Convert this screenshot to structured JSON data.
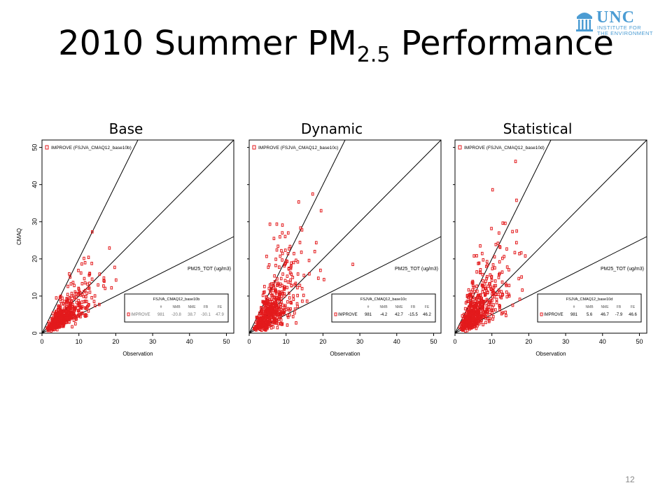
{
  "slide": {
    "title_main": "2010 Summer PM",
    "title_sub": "2.5",
    "title_end": " Performance",
    "page_number": "12"
  },
  "logo": {
    "name": "UNC",
    "subtitle_line1": "INSTITUTE FOR",
    "subtitle_line2": "THE ENVIRONMENT",
    "color": "#4b9cd3"
  },
  "chart_data": [
    {
      "type": "scatter",
      "panel_label": "Base",
      "legend": "IMPROVE (FSJVA_CMAQ12_base10b)",
      "species_label": "PM25_TOT   (ug/m3)",
      "xlabel": "Observation",
      "ylabel": "CMAQ",
      "xlim": [
        0,
        52
      ],
      "ylim": [
        0,
        52
      ],
      "xticks": [
        "0",
        "10",
        "20",
        "30",
        "40",
        "50"
      ],
      "yticks": [
        "0",
        "10",
        "20",
        "30",
        "40",
        "50"
      ],
      "reference_lines": [
        "2:1",
        "1:1",
        "1:2"
      ],
      "marker_color": "#e31a1c",
      "stats": {
        "run": "FSJVA_CMAQ12_base10b",
        "headers": [
          "",
          "#",
          "NMB",
          "NME",
          "FB",
          "FE"
        ],
        "row": [
          "IMPROVE",
          "981",
          "-20.8",
          "38.7",
          "-30.1",
          "47.9"
        ]
      },
      "points_summary": {
        "seed": 11,
        "max_obs": 22,
        "max_mod": 29,
        "count": 981
      }
    },
    {
      "type": "scatter",
      "panel_label": "Dynamic",
      "legend": "IMPROVE (FSJVA_CMAQ12_base10c)",
      "species_label": "PM25_TOT   (ug/m3)",
      "xlabel": "Observation",
      "ylabel": "",
      "xlim": [
        0,
        52
      ],
      "ylim": [
        0,
        52
      ],
      "xticks": [
        "0",
        "10",
        "20",
        "30",
        "40",
        "50"
      ],
      "yticks": [],
      "reference_lines": [
        "2:1",
        "1:1",
        "1:2"
      ],
      "marker_color": "#e31a1c",
      "stats": {
        "run": "FSJVA_CMAQ12_base10c",
        "headers": [
          "",
          "#",
          "NMB",
          "NME",
          "FB",
          "FE"
        ],
        "row": [
          "IMPROVE",
          "981",
          "-4.2",
          "42.7",
          "-15.5",
          "46.2"
        ]
      },
      "points_summary": {
        "seed": 23,
        "max_obs": 30,
        "max_mod": 43,
        "count": 981
      }
    },
    {
      "type": "scatter",
      "panel_label": "Statistical",
      "legend": "IMPROVE (FSJVA_CMAQ12_base10d)",
      "species_label": "PM25_TOT   (ug/m3)",
      "xlabel": "Observation",
      "ylabel": "",
      "xlim": [
        0,
        52
      ],
      "ylim": [
        0,
        52
      ],
      "xticks": [
        "0",
        "10",
        "20",
        "30",
        "40",
        "50"
      ],
      "yticks": [],
      "reference_lines": [
        "2:1",
        "1:1",
        "1:2"
      ],
      "marker_color": "#e31a1c",
      "stats": {
        "run": "FSJVA_CMAQ12_base10d",
        "headers": [
          "",
          "#",
          "NMB",
          "NME",
          "FB",
          "FE"
        ],
        "row": [
          "IMPROVE",
          "981",
          "5.6",
          "46.7",
          "-7.9",
          "46.6"
        ]
      },
      "points_summary": {
        "seed": 37,
        "max_obs": 32,
        "max_mod": 51,
        "count": 981
      }
    }
  ]
}
